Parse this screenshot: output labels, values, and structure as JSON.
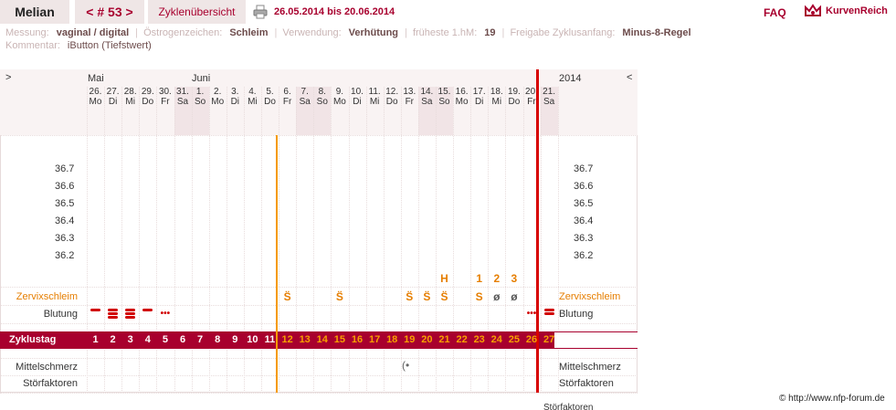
{
  "header": {
    "user": "Melian",
    "cycle_nav": "< # 53 >",
    "overview": "Zyklenübersicht",
    "date_range": "26.05.2014 bis 20.06.2014",
    "faq": "FAQ",
    "logo_text": "KurvenReich"
  },
  "meta": {
    "messung_label": "Messung:",
    "messung": "vaginal / digital",
    "oestrogen_label": "Östrogenzeichen:",
    "oestrogen": "Schleim",
    "verwendung_label": "Verwendung:",
    "verwendung": "Verhütung",
    "hm_label": "früheste 1.hM:",
    "hm": "19",
    "freigabe_label": "Freigabe Zyklusanfang:",
    "freigabe": "Minus-8-Regel",
    "kommentar_label": "Kommentar:",
    "kommentar": "iButton (Tiefstwert)"
  },
  "chart": {
    "nav_left": ">",
    "nav_right": "<",
    "month_mai": "Mai",
    "month_juni": "Juni",
    "year": "2014",
    "days": [
      {
        "d": "26.",
        "w": "Mo",
        "we": false
      },
      {
        "d": "27.",
        "w": "Di",
        "we": false
      },
      {
        "d": "28.",
        "w": "Mi",
        "we": false
      },
      {
        "d": "29.",
        "w": "Do",
        "we": false
      },
      {
        "d": "30.",
        "w": "Fr",
        "we": false
      },
      {
        "d": "31.",
        "w": "Sa",
        "we": true
      },
      {
        "d": "1.",
        "w": "So",
        "we": true
      },
      {
        "d": "2.",
        "w": "Mo",
        "we": false
      },
      {
        "d": "3.",
        "w": "Di",
        "we": false
      },
      {
        "d": "4.",
        "w": "Mi",
        "we": false
      },
      {
        "d": "5.",
        "w": "Do",
        "we": false
      },
      {
        "d": "6.",
        "w": "Fr",
        "we": false
      },
      {
        "d": "7.",
        "w": "Sa",
        "we": true
      },
      {
        "d": "8.",
        "w": "So",
        "we": true
      },
      {
        "d": "9.",
        "w": "Mo",
        "we": false
      },
      {
        "d": "10.",
        "w": "Di",
        "we": false
      },
      {
        "d": "11.",
        "w": "Mi",
        "we": false
      },
      {
        "d": "12.",
        "w": "Do",
        "we": false
      },
      {
        "d": "13.",
        "w": "Fr",
        "we": false
      },
      {
        "d": "14.",
        "w": "Sa",
        "we": true
      },
      {
        "d": "15.",
        "w": "So",
        "we": true
      },
      {
        "d": "16.",
        "w": "Mo",
        "we": false
      },
      {
        "d": "17.",
        "w": "Di",
        "we": false
      },
      {
        "d": "18.",
        "w": "Mi",
        "we": false
      },
      {
        "d": "19.",
        "w": "Do",
        "we": false
      },
      {
        "d": "20.",
        "w": "Fr",
        "we": false
      },
      {
        "d": "21.",
        "w": "Sa",
        "we": true
      }
    ],
    "temps": [
      "36.7",
      "36.6",
      "36.5",
      "36.4",
      "36.3",
      "36.2"
    ],
    "hm_marks": [
      {
        "day": 21,
        "t": "H"
      },
      {
        "day": 23,
        "t": "1"
      },
      {
        "day": 24,
        "t": "2"
      },
      {
        "day": 25,
        "t": "3"
      }
    ],
    "zervix_label": "Zervixschleim",
    "zervix": [
      {
        "day": 12,
        "t": "S̈"
      },
      {
        "day": 15,
        "t": "S̈"
      },
      {
        "day": 19,
        "t": "S̈"
      },
      {
        "day": 20,
        "t": "S̈"
      },
      {
        "day": 21,
        "t": "S̈"
      },
      {
        "day": 23,
        "t": "S"
      },
      {
        "day": 24,
        "t": "ø"
      },
      {
        "day": 25,
        "t": "ø"
      }
    ],
    "blutung_label": "Blutung",
    "blutung": [
      {
        "day": 1,
        "n": 1
      },
      {
        "day": 2,
        "n": 3
      },
      {
        "day": 3,
        "n": 3
      },
      {
        "day": 4,
        "n": 1
      },
      {
        "day": 5,
        "n": 0
      },
      {
        "day": 26,
        "n": 0
      },
      {
        "day": 27,
        "n": 2
      }
    ],
    "zyklustag_label": "Zyklustag",
    "zyklustage": [
      "1",
      "2",
      "3",
      "4",
      "5",
      "6",
      "7",
      "8",
      "9",
      "10",
      "11",
      "12",
      "13",
      "14",
      "15",
      "16",
      "17",
      "18",
      "19",
      "20",
      "21",
      "22",
      "23",
      "24",
      "25",
      "26",
      "27"
    ],
    "mittelschmerz_label": "Mittelschmerz",
    "stoerfaktoren_label": "Störfaktoren",
    "stoerfaktoren_partial": "Störfaktoren"
  },
  "footer": {
    "credit": "© http://www.nfp-forum.de"
  }
}
